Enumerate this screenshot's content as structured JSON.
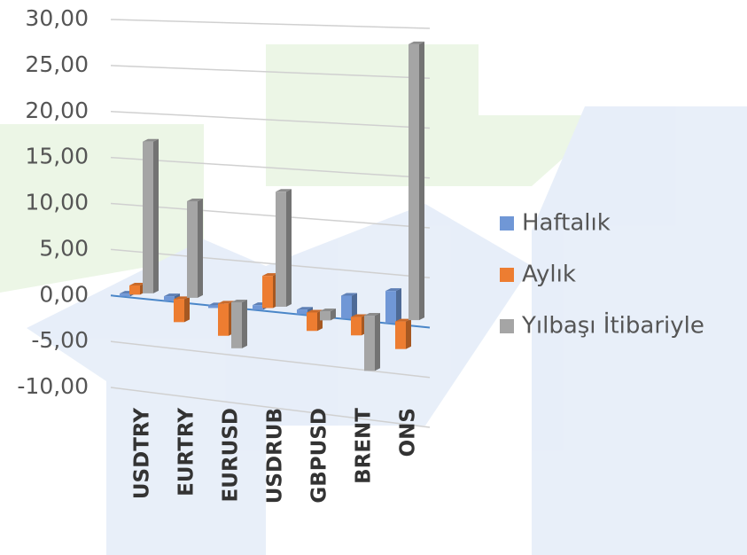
{
  "chart_data": {
    "type": "bar3d",
    "categories": [
      "USDTRY",
      "EURTRY",
      "EURUSD",
      "USDRUB",
      "GBPUSD",
      "BRENT",
      "ONS"
    ],
    "series": [
      {
        "name": "Haftalık",
        "color": "#7097d6",
        "values": [
          0.3,
          0.5,
          -0.3,
          0.5,
          0.5,
          2.5,
          3.5
        ]
      },
      {
        "name": "Aylık",
        "color": "#ed7d31",
        "values": [
          1,
          -2.5,
          -3.5,
          3.5,
          -2,
          -2,
          -3
        ]
      },
      {
        "name": "Yılbaşı İtibariyle",
        "color": "#a5a5a5",
        "values": [
          16.5,
          10.5,
          -5,
          12.5,
          -1,
          -6,
          30
        ]
      }
    ],
    "ylim": [
      -10,
      30
    ],
    "yticks": [
      {
        "value": -10,
        "label": "-10,00"
      },
      {
        "value": -5,
        "label": "-5,00"
      },
      {
        "value": 0,
        "label": "0,00"
      },
      {
        "value": 5,
        "label": "5,00"
      },
      {
        "value": 10,
        "label": "10,00"
      },
      {
        "value": 15,
        "label": "15,00"
      },
      {
        "value": 20,
        "label": "20,00"
      },
      {
        "value": 25,
        "label": "25,00"
      },
      {
        "value": 30,
        "label": "30,00"
      }
    ],
    "grid": true
  }
}
